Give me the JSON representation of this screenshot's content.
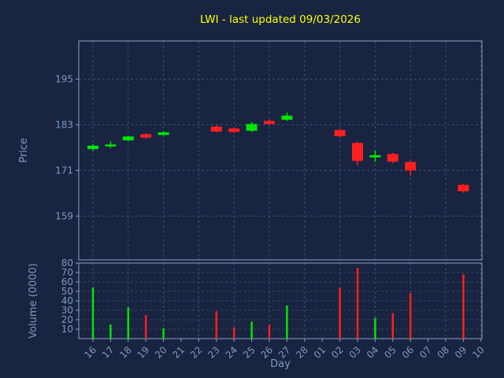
{
  "chart_data": {
    "type": "candlestick",
    "title": "LWI - last updated 09/03/2026",
    "xlabel": "Day",
    "ylabel_price": "Price",
    "ylabel_volume": "Volume (0000)",
    "x_categories": [
      "16",
      "17",
      "18",
      "19",
      "20",
      "21",
      "22",
      "23",
      "24",
      "25",
      "26",
      "27",
      "28",
      "01",
      "02",
      "03",
      "04",
      "05",
      "06",
      "07",
      "08",
      "09",
      "10"
    ],
    "price_ticks": [
      159,
      171,
      183,
      195
    ],
    "price_range": [
      147.5,
      205
    ],
    "volume_ticks": [
      10,
      20,
      30,
      40,
      50,
      60,
      70,
      80
    ],
    "volume_range": [
      0,
      80
    ],
    "grid": "dashed",
    "legend": "none",
    "colors": {
      "up": "#00e600",
      "down": "#ff1f1f",
      "background": "#182440",
      "text": "#7e99c3",
      "title": "#ffff00",
      "grid": "#3e4e74",
      "spine": "#8aa2c8"
    },
    "candles": [
      {
        "day": "16",
        "open": 176.6,
        "high": 177.9,
        "low": 176.2,
        "close": 177.5
      },
      {
        "day": "17",
        "open": 177.3,
        "high": 178.6,
        "low": 176.9,
        "close": 177.8
      },
      {
        "day": "18",
        "open": 178.9,
        "high": 180.1,
        "low": 178.7,
        "close": 179.9
      },
      {
        "day": "19",
        "open": 180.5,
        "high": 180.8,
        "low": 179.3,
        "close": 179.6
      },
      {
        "day": "20",
        "open": 180.3,
        "high": 181.3,
        "low": 180.1,
        "close": 181.0
      },
      {
        "day": "23",
        "open": 182.5,
        "high": 182.8,
        "low": 181.0,
        "close": 181.2
      },
      {
        "day": "24",
        "open": 182.0,
        "high": 182.3,
        "low": 180.8,
        "close": 181.1
      },
      {
        "day": "25",
        "open": 181.4,
        "high": 183.7,
        "low": 181.1,
        "close": 183.2
      },
      {
        "day": "26",
        "open": 184.0,
        "high": 184.4,
        "low": 182.9,
        "close": 183.2
      },
      {
        "day": "27",
        "open": 184.3,
        "high": 186.2,
        "low": 184.0,
        "close": 185.4
      },
      {
        "day": "02",
        "open": 181.6,
        "high": 181.9,
        "low": 179.7,
        "close": 180.0
      },
      {
        "day": "03",
        "open": 178.2,
        "high": 178.6,
        "low": 172.3,
        "close": 173.5
      },
      {
        "day": "04",
        "open": 174.4,
        "high": 176.2,
        "low": 173.3,
        "close": 175.0
      },
      {
        "day": "05",
        "open": 175.3,
        "high": 175.6,
        "low": 172.9,
        "close": 173.3
      },
      {
        "day": "06",
        "open": 173.2,
        "high": 173.5,
        "low": 169.6,
        "close": 171.0
      },
      {
        "day": "09",
        "open": 167.2,
        "high": 167.5,
        "low": 165.1,
        "close": 165.5
      }
    ],
    "volumes": [
      {
        "day": "16",
        "value": 54
      },
      {
        "day": "17",
        "value": 15
      },
      {
        "day": "18",
        "value": 33
      },
      {
        "day": "19",
        "value": 25
      },
      {
        "day": "20",
        "value": 11
      },
      {
        "day": "23",
        "value": 29
      },
      {
        "day": "24",
        "value": 12
      },
      {
        "day": "25",
        "value": 18
      },
      {
        "day": "26",
        "value": 15
      },
      {
        "day": "27",
        "value": 35
      },
      {
        "day": "02",
        "value": 54
      },
      {
        "day": "03",
        "value": 75
      },
      {
        "day": "04",
        "value": 22
      },
      {
        "day": "05",
        "value": 27
      },
      {
        "day": "06",
        "value": 48
      },
      {
        "day": "09",
        "value": 68
      }
    ]
  }
}
